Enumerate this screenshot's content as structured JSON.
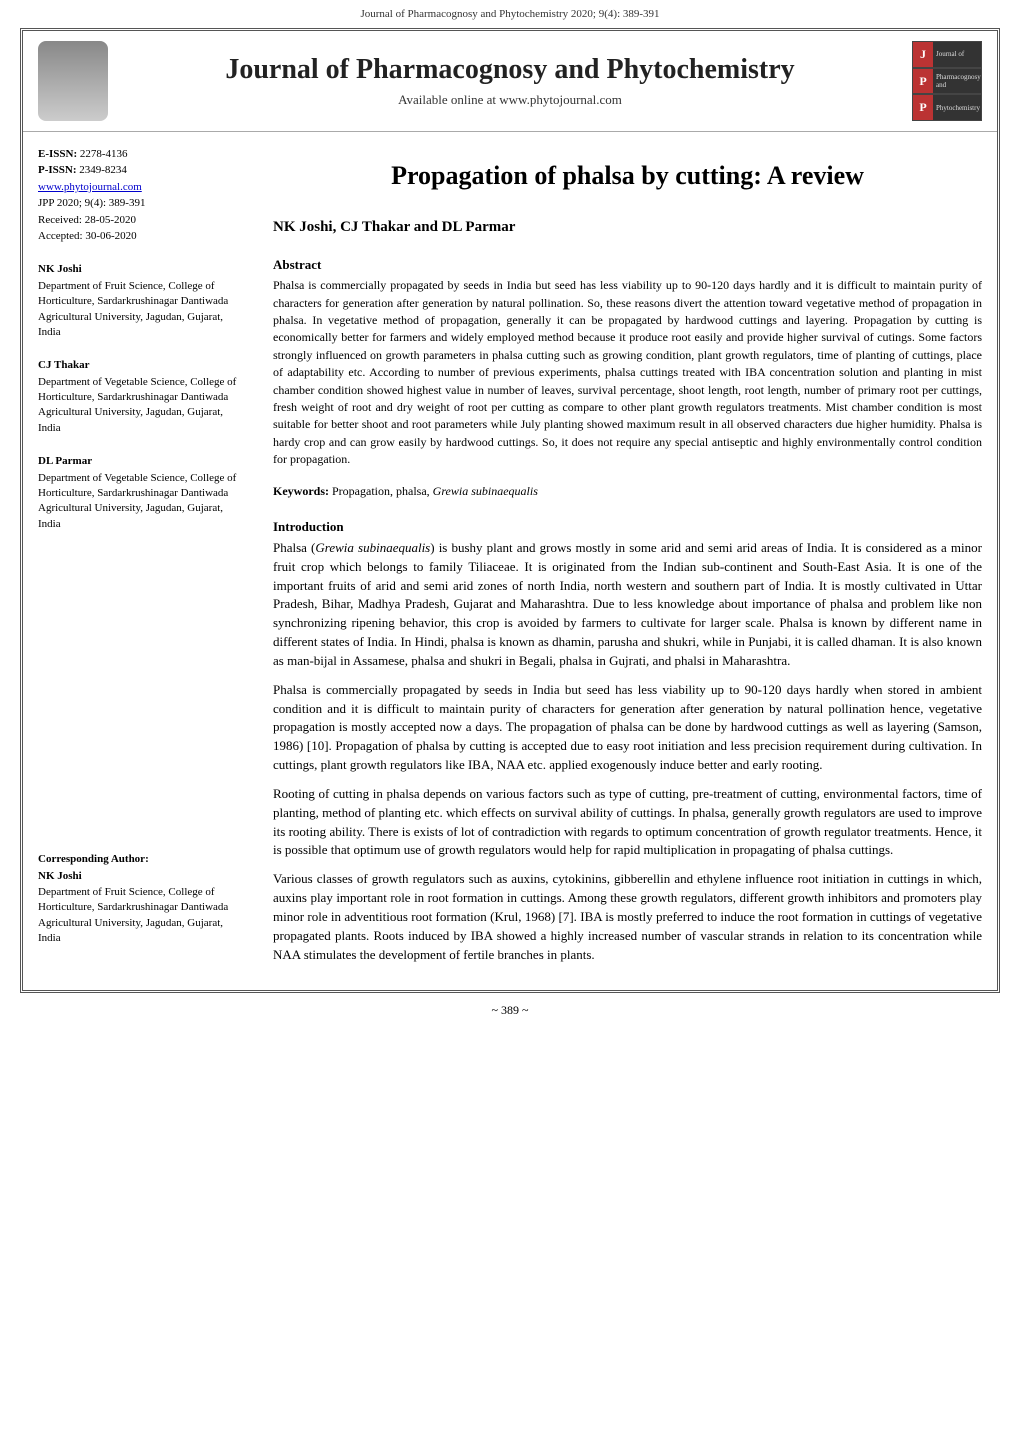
{
  "running_header": "Journal of Pharmacognosy and Phytochemistry 2020; 9(4): 389-391",
  "masthead": {
    "journal_name": "Journal of Pharmacognosy and Phytochemistry",
    "availability": "Available online at www.phytojournal.com",
    "badge": {
      "rows": [
        {
          "letter": "J",
          "text": "Journal of"
        },
        {
          "letter": "P",
          "text": "Pharmacognosy and"
        },
        {
          "letter": "P",
          "text": "Phytochemistry"
        }
      ]
    }
  },
  "sidebar": {
    "meta": {
      "eissn_label": "E-ISSN:",
      "eissn_value": "2278-4136",
      "pissn_label": "P-ISSN:",
      "pissn_value": "2349-8234",
      "link": "www.phytojournal.com",
      "citation": "JPP 2020; 9(4): 389-391",
      "received": "Received: 28-05-2020",
      "accepted": "Accepted: 30-06-2020"
    },
    "authors": [
      {
        "name": "NK Joshi",
        "affil": "Department of Fruit Science, College of Horticulture, Sardarkrushinagar Dantiwada Agricultural University, Jagudan, Gujarat, India"
      },
      {
        "name": "CJ Thakar",
        "affil": "Department of Vegetable Science, College of Horticulture, Sardarkrushinagar Dantiwada Agricultural University, Jagudan, Gujarat, India"
      },
      {
        "name": "DL Parmar",
        "affil": "Department of Vegetable Science, College of Horticulture, Sardarkrushinagar Dantiwada Agricultural University, Jagudan, Gujarat, India"
      }
    ],
    "corresponding": {
      "label": "Corresponding Author:",
      "name": "NK Joshi",
      "affil": "Department of Fruit Science, College of Horticulture, Sardarkrushinagar Dantiwada Agricultural University, Jagudan, Gujarat, India"
    }
  },
  "article": {
    "title": "Propagation of phalsa by cutting: A review",
    "authors_line": "NK Joshi, CJ Thakar and DL Parmar",
    "abstract_head": "Abstract",
    "abstract_text": "Phalsa is commercially propagated by seeds in India but seed has less viability up to 90-120 days hardly and it is difficult to maintain purity of characters for generation after generation by natural pollination. So, these reasons divert the attention toward vegetative method of propagation in phalsa. In vegetative method of propagation, generally it can be propagated by hardwood cuttings and layering. Propagation by cutting is economically better for farmers and widely employed method because it produce root easily and provide higher survival of cutings. Some factors strongly influenced on growth parameters in phalsa cutting such as growing condition, plant growth regulators, time of planting of cuttings, place of adaptability etc. According to number of previous experiments, phalsa cuttings treated with IBA concentration solution and planting in mist chamber condition showed highest value in number of leaves, survival percentage, shoot length, root length, number of primary root per cuttings, fresh weight of root and dry weight of root per cutting as compare to other plant growth regulators treatments. Mist chamber condition is most suitable for better shoot and root parameters while July planting showed maximum result in all observed characters due higher humidity. Phalsa is hardy crop and can grow easily by hardwood cuttings. So, it does not require any special antiseptic and highly environmentally control condition for propagation.",
    "keywords_label": "Keywords:",
    "keywords_text": "Propagation, phalsa, ",
    "keywords_italic": "Grewia subinaequalis",
    "intro_head": "Introduction",
    "intro_p1_a": "Phalsa (",
    "intro_p1_italic": "Grewia subinaequalis",
    "intro_p1_b": ") is bushy plant and grows mostly in some arid and semi arid areas of India. It is considered as a minor fruit crop which belongs to family Tiliaceae. It is originated from the Indian sub-continent and South-East Asia. It is one of the important fruits of arid and semi arid zones of north India, north western and southern part of India. It is mostly cultivated in Uttar Pradesh, Bihar, Madhya Pradesh, Gujarat and Maharashtra. Due to less knowledge about importance of phalsa and problem like non synchronizing ripening behavior, this crop is avoided by farmers to cultivate for larger scale. Phalsa is known by different name in different states of India. In Hindi, phalsa is known as dhamin, parusha and shukri, while in Punjabi, it is called dhaman. It is also known as man-bijal in Assamese, phalsa and shukri in Begali, phalsa in Gujrati, and phalsi in Maharashtra.",
    "intro_p2": "Phalsa is commercially propagated by seeds in India but seed has less viability up to 90-120 days hardly when stored in ambient condition and it is difficult to maintain purity of characters for generation after generation by natural pollination hence, vegetative propagation is mostly accepted now a days. The propagation of phalsa can be done by hardwood cuttings as well as layering (Samson, 1986) [10]. Propagation of phalsa by cutting is accepted due to easy root initiation and less precision requirement during cultivation. In cuttings, plant growth regulators like IBA, NAA etc. applied exogenously induce better and early rooting.",
    "intro_p3": "Rooting of cutting in phalsa depends on various factors such as type of cutting, pre-treatment of cutting, environmental factors, time of planting, method of planting etc. which effects on survival ability of cuttings. In phalsa, generally growth regulators are used to improve its rooting ability. There is exists of lot of contradiction with regards to optimum concentration of growth regulator treatments. Hence, it is possible that optimum use of growth regulators would help for rapid multiplication in propagating of phalsa cuttings.",
    "intro_p4": "Various classes of growth regulators such as auxins, cytokinins, gibberellin and ethylene influence root initiation in cuttings in which, auxins play important role in root formation in cuttings. Among these growth regulators, different growth inhibitors and promoters play minor role in adventitious root formation (Krul, 1968) [7]. IBA is mostly preferred to induce the root formation in cuttings of vegetative propagated plants. Roots induced by IBA showed a highly increased number of vascular strands in relation to its concentration while NAA stimulates the development of fertile branches in plants."
  },
  "page_number": "~ 389 ~",
  "colors": {
    "link": "#0000cc",
    "badge_letter_bg": "#b33333",
    "badge_text_bg": "#333333"
  }
}
